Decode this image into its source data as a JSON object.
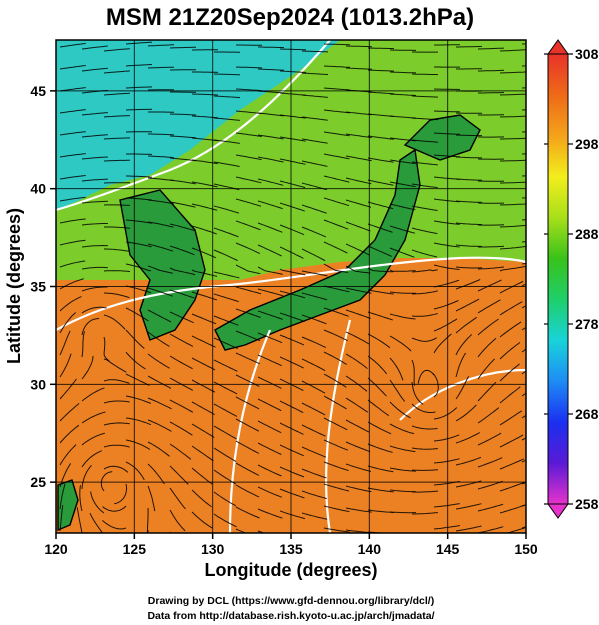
{
  "title": "MSM 21Z20Sep2024 (1013.2hPa)",
  "x_axis": {
    "label": "Longitude (degrees)",
    "range": [
      120,
      150
    ],
    "ticks": [
      120,
      125,
      130,
      135,
      140,
      145,
      150
    ]
  },
  "y_axis": {
    "label": "Latitude  (degrees)",
    "range": [
      22.4,
      47.6
    ],
    "ticks": [
      25,
      30,
      35,
      40,
      45
    ]
  },
  "colorbar": {
    "range": [
      258,
      308
    ],
    "ticks": [
      258,
      268,
      278,
      288,
      298,
      308
    ],
    "colors": [
      "#e633cc",
      "#5a1ad6",
      "#1a30f0",
      "#1e8cf5",
      "#19d3d9",
      "#1fcf6a",
      "#39c21a",
      "#a8df1a",
      "#f2ee1c",
      "#f4a21a",
      "#ee6a18",
      "#e8332a"
    ]
  },
  "map_colors": {
    "warm": "#ec8124",
    "mid": "#7ccd2b",
    "cool": "#2fc9c4",
    "land": "#2a9b3a",
    "contour": "#ffffff"
  },
  "credits": {
    "line1": "Drawing by DCL (https://www.gfd-dennou.org/library/dcl/)",
    "line2": "Data from http://database.rish.kyoto-u.ac.jp/arch/jmadata/"
  }
}
